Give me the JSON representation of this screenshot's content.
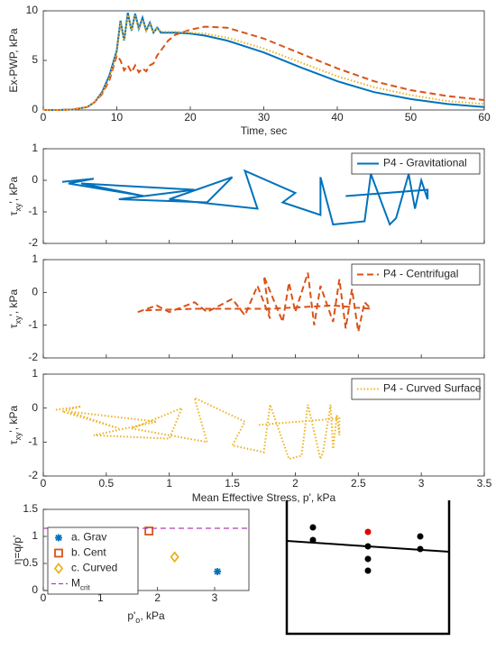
{
  "chart_data": [
    {
      "type": "line",
      "xlabel": "Time, sec",
      "ylabel": "Ex-PWP, kPa",
      "xlim": [
        0,
        60
      ],
      "xticks": [
        0,
        10,
        20,
        30,
        40,
        50,
        60
      ],
      "ylim": [
        0,
        10
      ],
      "yticks": [
        0,
        5,
        10
      ],
      "x": [
        0,
        2,
        4,
        6,
        7,
        8,
        9,
        10,
        10.5,
        11,
        11.5,
        12,
        12.5,
        13,
        13.5,
        14,
        14.5,
        15,
        15.5,
        16,
        17,
        18,
        20,
        22,
        25,
        30,
        35,
        40,
        45,
        50,
        55,
        60
      ],
      "series": [
        {
          "color": "#0072bd",
          "dash": "solid",
          "values": [
            0,
            0,
            0.05,
            0.3,
            0.8,
            1.8,
            3.5,
            6,
            9,
            7,
            9.8,
            8,
            9.7,
            8.2,
            9.3,
            8,
            8.8,
            7.8,
            8.3,
            7.8,
            7.8,
            7.8,
            7.7,
            7.5,
            7.0,
            5.8,
            4.3,
            2.9,
            1.8,
            1.1,
            0.6,
            0.3
          ]
        },
        {
          "color": "#d95319",
          "dash": "dashed",
          "values": [
            0,
            0,
            0.05,
            0.3,
            0.8,
            1.6,
            3,
            5.5,
            5,
            4,
            4.5,
            3.8,
            4.5,
            3.8,
            4.2,
            3.9,
            4.5,
            4.7,
            5.5,
            6,
            7,
            7.6,
            8.1,
            8.4,
            8.3,
            7.2,
            5.7,
            4.2,
            2.9,
            2,
            1.4,
            1.0
          ]
        },
        {
          "color": "#edb120",
          "dash": "dotted",
          "values": [
            0,
            0,
            0.05,
            0.3,
            0.8,
            1.7,
            3.3,
            5.8,
            8.8,
            7,
            9.6,
            8,
            9.5,
            8.1,
            9.1,
            8,
            8.6,
            7.8,
            8.2,
            7.9,
            7.9,
            7.9,
            7.8,
            7.7,
            7.3,
            6.2,
            4.8,
            3.4,
            2.3,
            1.5,
            0.9,
            0.6
          ]
        }
      ]
    },
    {
      "type": "line",
      "ylabel": {
        "main": "τ",
        "sub": "xy",
        "rest": "', kPa"
      },
      "legend": "northeast",
      "xlim": [
        0,
        3.5
      ],
      "xticks": [
        0,
        0.5,
        1,
        1.5,
        2,
        2.5,
        3,
        3.5
      ],
      "ylim": [
        -2,
        1
      ],
      "yticks": [
        -2,
        -1,
        0,
        1
      ],
      "series": [
        {
          "name": "P4 - Gravitational",
          "color": "#0072bd",
          "dash": "solid",
          "x": [
            0.15,
            0.4,
            0.2,
            0.8,
            0.3,
            1.2,
            0.6,
            1.3,
            1.5,
            1.0,
            1.7,
            1.6,
            2.0,
            1.9,
            2.2,
            2.2,
            2.3,
            2.55,
            2.6,
            2.75,
            2.8,
            2.9,
            2.95,
            3.0,
            3.05,
            3.05,
            2.4
          ],
          "values": [
            -0.05,
            0.05,
            -0.1,
            -0.5,
            -0.1,
            -0.3,
            -0.6,
            -0.7,
            0.1,
            -0.6,
            -0.9,
            0.3,
            -0.4,
            -0.7,
            -1.1,
            0.1,
            -1.4,
            -1.3,
            0.2,
            -1.4,
            -1.2,
            0.2,
            -0.9,
            0,
            -0.6,
            -0.3,
            -0.5
          ]
        }
      ]
    },
    {
      "type": "line",
      "ylabel": {
        "main": "τ",
        "sub": "xy",
        "rest": "', kPa"
      },
      "legend": "northeast",
      "xlim": [
        0,
        3.5
      ],
      "xticks": [
        0,
        0.5,
        1,
        1.5,
        2,
        2.5,
        3,
        3.5
      ],
      "ylim": [
        -2,
        1
      ],
      "yticks": [
        -2,
        -1,
        0,
        1
      ],
      "series": [
        {
          "name": "P4 - Centrifugal",
          "color": "#d95319",
          "dash": "dashed",
          "x": [
            0.75,
            0.9,
            1.0,
            1.2,
            1.3,
            1.5,
            1.6,
            1.7,
            1.8,
            1.75,
            1.9,
            1.95,
            2.0,
            2.1,
            2.15,
            2.2,
            2.3,
            2.35,
            2.4,
            2.45,
            2.5,
            2.55,
            2.6,
            2.3,
            1.8,
            1.2,
            0.8
          ],
          "values": [
            -0.6,
            -0.4,
            -0.6,
            -0.3,
            -0.6,
            -0.2,
            -0.7,
            0.2,
            -0.8,
            0.5,
            -0.9,
            0.3,
            -0.6,
            0.6,
            -1.0,
            0.2,
            -0.9,
            0.4,
            -1.1,
            0.1,
            -1.2,
            -0.3,
            -0.5,
            -0.4,
            -0.5,
            -0.5,
            -0.55
          ]
        }
      ]
    },
    {
      "type": "line",
      "xlabel": "Mean Effective Stress, p', kPa",
      "ylabel": {
        "main": "τ",
        "sub": "xy",
        "rest": "', kPa"
      },
      "legend": "northeast",
      "xlim": [
        0,
        3.5
      ],
      "xticks": [
        0,
        0.5,
        1,
        1.5,
        2,
        2.5,
        3,
        3.5
      ],
      "ylim": [
        -2,
        1
      ],
      "yticks": [
        -2,
        -1,
        0,
        1
      ],
      "series": [
        {
          "name": "P4 - Curved Surface",
          "color": "#edb120",
          "dash": "dotted",
          "x": [
            0.1,
            0.3,
            0.15,
            0.6,
            0.2,
            0.9,
            0.4,
            1.0,
            1.1,
            0.7,
            1.3,
            1.2,
            1.6,
            1.5,
            1.75,
            1.8,
            1.95,
            2.05,
            2.1,
            2.2,
            2.22,
            2.28,
            2.3,
            2.33,
            2.35,
            2.35,
            1.7
          ],
          "values": [
            -0.05,
            0.05,
            -0.1,
            -0.6,
            -0.1,
            -0.4,
            -0.8,
            -0.9,
            0.0,
            -0.6,
            -1.0,
            0.3,
            -0.4,
            -1.1,
            -1.3,
            0.1,
            -1.5,
            -1.4,
            0.1,
            -1.5,
            -1.3,
            0.1,
            -1.2,
            -0.2,
            -0.8,
            -0.3,
            -0.5
          ]
        }
      ]
    },
    {
      "type": "scatter",
      "xlabel": {
        "main": "p'",
        "sub": "o",
        "rest": ", kPa"
      },
      "ylabel": "η=q/p'",
      "legend": "northwest",
      "xlim": [
        0,
        3.6
      ],
      "xticks": [
        0,
        1,
        2,
        3
      ],
      "ylim": [
        0,
        1.5
      ],
      "yticks": [
        0,
        0.5,
        1,
        1.5
      ],
      "series": [
        {
          "name": "a. Grav",
          "color": "#0072bd",
          "marker": "asterisk",
          "x": [
            3.05
          ],
          "values": [
            0.35
          ]
        },
        {
          "name": "b. Cent",
          "color": "#d95319",
          "marker": "square",
          "x": [
            1.85
          ],
          "values": [
            1.1
          ]
        },
        {
          "name": "c. Curved",
          "color": "#edb120",
          "marker": "diamond",
          "x": [
            2.3
          ],
          "values": [
            0.62
          ]
        }
      ],
      "hlines": [
        {
          "name": "M",
          "subscript": "crit",
          "color": "#b040b0",
          "value": 1.15
        }
      ]
    }
  ]
}
